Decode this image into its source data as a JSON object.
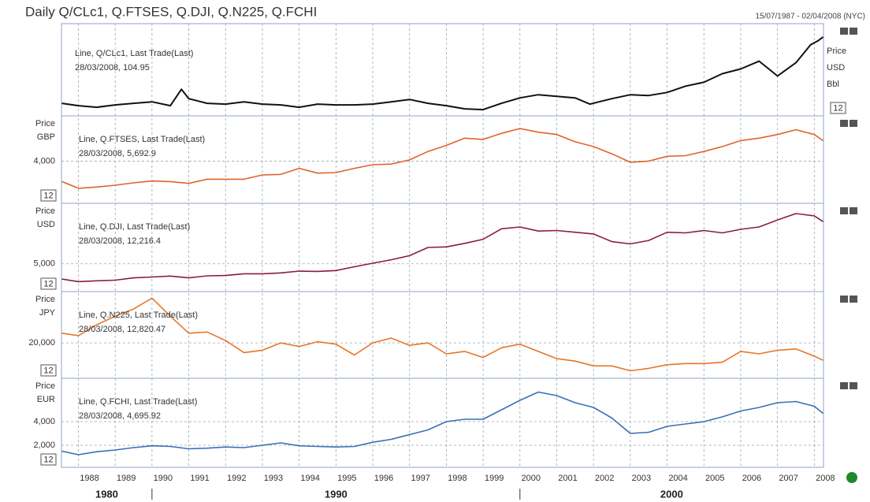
{
  "title": "Daily Q/CLc1, Q.FTSES, Q.DJI, Q.N225, Q.FCHI",
  "date_range": "15/07/1987 - 02/04/2008 (NYC)",
  "xlim": [
    1987.54,
    2008.25
  ],
  "xticks": [
    1988,
    1989,
    1990,
    1991,
    1992,
    1993,
    1994,
    1995,
    1996,
    1997,
    1998,
    1999,
    2000,
    2001,
    2002,
    2003,
    2004,
    2005,
    2006,
    2007,
    2008
  ],
  "decades": [
    1980,
    1990,
    2000
  ],
  "chart_data": [
    {
      "type": "line",
      "axis_labels": [
        "Price",
        "USD",
        "Bbl"
      ],
      "scale_label": "12",
      "ylim": [
        4,
        122
      ],
      "x": [
        1987.55,
        1988,
        1988.5,
        1989,
        1989.5,
        1990,
        1990.5,
        1990.8,
        1991,
        1991.5,
        1992,
        1992.5,
        1993,
        1993.5,
        1994,
        1994.5,
        1995,
        1995.5,
        1996,
        1996.5,
        1997,
        1997.5,
        1998,
        1998.5,
        1999,
        1999.5,
        2000,
        2000.5,
        2001,
        2001.5,
        2001.9,
        2002.5,
        2003,
        2003.5,
        2004,
        2004.5,
        2005,
        2005.5,
        2006,
        2006.5,
        2007,
        2007.5,
        2007.9,
        2008.1,
        2008.24
      ],
      "series": [
        {
          "name": "Line, Q/CLc1, Last Trade(Last)",
          "last_label": "28/03/2008, 104.95",
          "color": "#111111",
          "values": [
            20,
            17,
            15,
            18,
            20,
            22,
            17,
            38,
            26,
            20,
            19,
            22,
            19,
            18,
            15,
            19,
            18,
            18,
            19,
            22,
            25,
            20,
            17,
            13,
            12,
            20,
            27,
            31,
            29,
            27,
            19,
            26,
            31,
            30,
            34,
            42,
            47,
            58,
            64,
            74,
            55,
            72,
            95,
            100,
            104.95
          ]
        }
      ]
    },
    {
      "type": "line",
      "axis_labels": [
        "Price",
        "GBP"
      ],
      "scale_label": "12",
      "ylim": [
        500,
        7750
      ],
      "yticks": [
        {
          "value": 4000,
          "label": "4,000"
        }
      ],
      "x": [
        1987.55,
        1988,
        1988.5,
        1989,
        1989.5,
        1990,
        1990.5,
        1991,
        1991.5,
        1992,
        1992.5,
        1993,
        1993.5,
        1994,
        1994.5,
        1995,
        1995.5,
        1996,
        1996.5,
        1997,
        1997.5,
        1998,
        1998.5,
        1999,
        1999.5,
        2000,
        2000.5,
        2001,
        2001.5,
        2002,
        2002.5,
        2003,
        2003.5,
        2004,
        2004.5,
        2005,
        2005.5,
        2006,
        2006.5,
        2007,
        2007.5,
        2008,
        2008.24
      ],
      "series": [
        {
          "name": "Line, Q.FTSES, Last Trade(Last)",
          "last_label": "28/03/2008, 5,692.9",
          "color": "#e0622a",
          "values": [
            2300,
            1750,
            1850,
            2000,
            2200,
            2350,
            2300,
            2150,
            2500,
            2500,
            2500,
            2850,
            2900,
            3400,
            3000,
            3050,
            3400,
            3700,
            3750,
            4100,
            4800,
            5300,
            5900,
            5800,
            6300,
            6700,
            6400,
            6200,
            5600,
            5200,
            4600,
            3900,
            4000,
            4400,
            4450,
            4800,
            5200,
            5700,
            5900,
            6200,
            6600,
            6200,
            5692.9
          ]
        }
      ]
    },
    {
      "type": "line",
      "axis_labels": [
        "Price",
        "USD"
      ],
      "scale_label": "12",
      "ylim": [
        250,
        15350
      ],
      "yticks": [
        {
          "value": 5000,
          "label": "5,000"
        }
      ],
      "x": [
        1987.55,
        1988,
        1988.5,
        1989,
        1989.5,
        1990,
        1990.5,
        1991,
        1991.5,
        1992,
        1992.5,
        1993,
        1993.5,
        1994,
        1994.5,
        1995,
        1995.5,
        1996,
        1996.5,
        1997,
        1997.5,
        1998,
        1998.5,
        1999,
        1999.5,
        2000,
        2000.5,
        2001,
        2001.5,
        2002,
        2002.5,
        2003,
        2003.5,
        2004,
        2004.5,
        2005,
        2005.5,
        2006,
        2006.5,
        2007,
        2007.5,
        2008,
        2008.24
      ],
      "series": [
        {
          "name": "Line, Q.DJI, Last Trade(Last)",
          "last_label": "28/03/2008, 12,216.4",
          "color": "#8b1a4a",
          "values": [
            2400,
            1950,
            2100,
            2200,
            2600,
            2750,
            2900,
            2600,
            2950,
            3000,
            3300,
            3300,
            3450,
            3750,
            3700,
            3850,
            4500,
            5100,
            5700,
            6400,
            7800,
            7900,
            8500,
            9200,
            11000,
            11300,
            10600,
            10700,
            10400,
            10100,
            8800,
            8400,
            9000,
            10400,
            10300,
            10700,
            10300,
            10900,
            11300,
            12500,
            13600,
            13200,
            12216.4
          ]
        }
      ]
    },
    {
      "type": "line",
      "axis_labels": [
        "Price",
        "JPY"
      ],
      "scale_label": "12",
      "ylim": [
        5400,
        41200
      ],
      "yticks": [
        {
          "value": 20000,
          "label": "20,000"
        }
      ],
      "x": [
        1987.55,
        1988,
        1988.5,
        1989,
        1989.5,
        1990,
        1990.5,
        1991,
        1991.5,
        1992,
        1992.5,
        1993,
        1993.5,
        1994,
        1994.5,
        1995,
        1995.5,
        1996,
        1996.5,
        1997,
        1997.5,
        1998,
        1998.5,
        1999,
        1999.5,
        2000,
        2000.5,
        2001,
        2001.5,
        2002,
        2002.5,
        2003,
        2003.5,
        2004,
        2004.5,
        2005,
        2005.5,
        2006,
        2006.5,
        2007,
        2007.5,
        2008,
        2008.24
      ],
      "series": [
        {
          "name": "Line, Q.N225, Last Trade(Last)",
          "last_label": "28/03/2008, 12,820.47",
          "color": "#e8752a",
          "values": [
            24000,
            23000,
            27500,
            31000,
            34000,
            38500,
            31000,
            24000,
            24500,
            21000,
            16000,
            17000,
            20000,
            18500,
            20500,
            19500,
            15000,
            20000,
            22000,
            19000,
            20000,
            15500,
            16500,
            14000,
            18000,
            19500,
            16500,
            13500,
            12500,
            10500,
            10500,
            8500,
            9500,
            11000,
            11500,
            11500,
            12000,
            16500,
            15500,
            17000,
            17500,
            14500,
            12820.47
          ]
        }
      ]
    },
    {
      "type": "line",
      "axis_labels": [
        "Price",
        "EUR"
      ],
      "scale_label": "12",
      "ylim": [
        130,
        7670
      ],
      "yticks": [
        {
          "value": 2000,
          "label": "2,000"
        },
        {
          "value": 4000,
          "label": "4,000"
        }
      ],
      "x": [
        1987.55,
        1988,
        1988.5,
        1989,
        1989.5,
        1990,
        1990.5,
        1991,
        1991.5,
        1992,
        1992.5,
        1993,
        1993.5,
        1994,
        1994.5,
        1995,
        1995.5,
        1996,
        1996.5,
        1997,
        1997.5,
        1998,
        1998.5,
        1999,
        1999.5,
        2000,
        2000.5,
        2001,
        2001.5,
        2002,
        2002.5,
        2003,
        2003.5,
        2004,
        2004.5,
        2005,
        2005.5,
        2006,
        2006.5,
        2007,
        2007.5,
        2008,
        2008.24
      ],
      "series": [
        {
          "name": "Line, Q.FCHI, Last Trade(Last)",
          "last_label": "28/03/2008, 4,695.92",
          "color": "#3a6fb5",
          "values": [
            1500,
            1200,
            1450,
            1600,
            1800,
            1950,
            1900,
            1700,
            1750,
            1850,
            1800,
            2000,
            2200,
            1950,
            1900,
            1850,
            1900,
            2250,
            2500,
            2900,
            3300,
            4000,
            4200,
            4200,
            5000,
            5800,
            6500,
            6200,
            5600,
            5200,
            4300,
            3000,
            3100,
            3600,
            3800,
            4000,
            4400,
            4900,
            5200,
            5600,
            5700,
            5300,
            4695.92
          ]
        }
      ]
    }
  ]
}
